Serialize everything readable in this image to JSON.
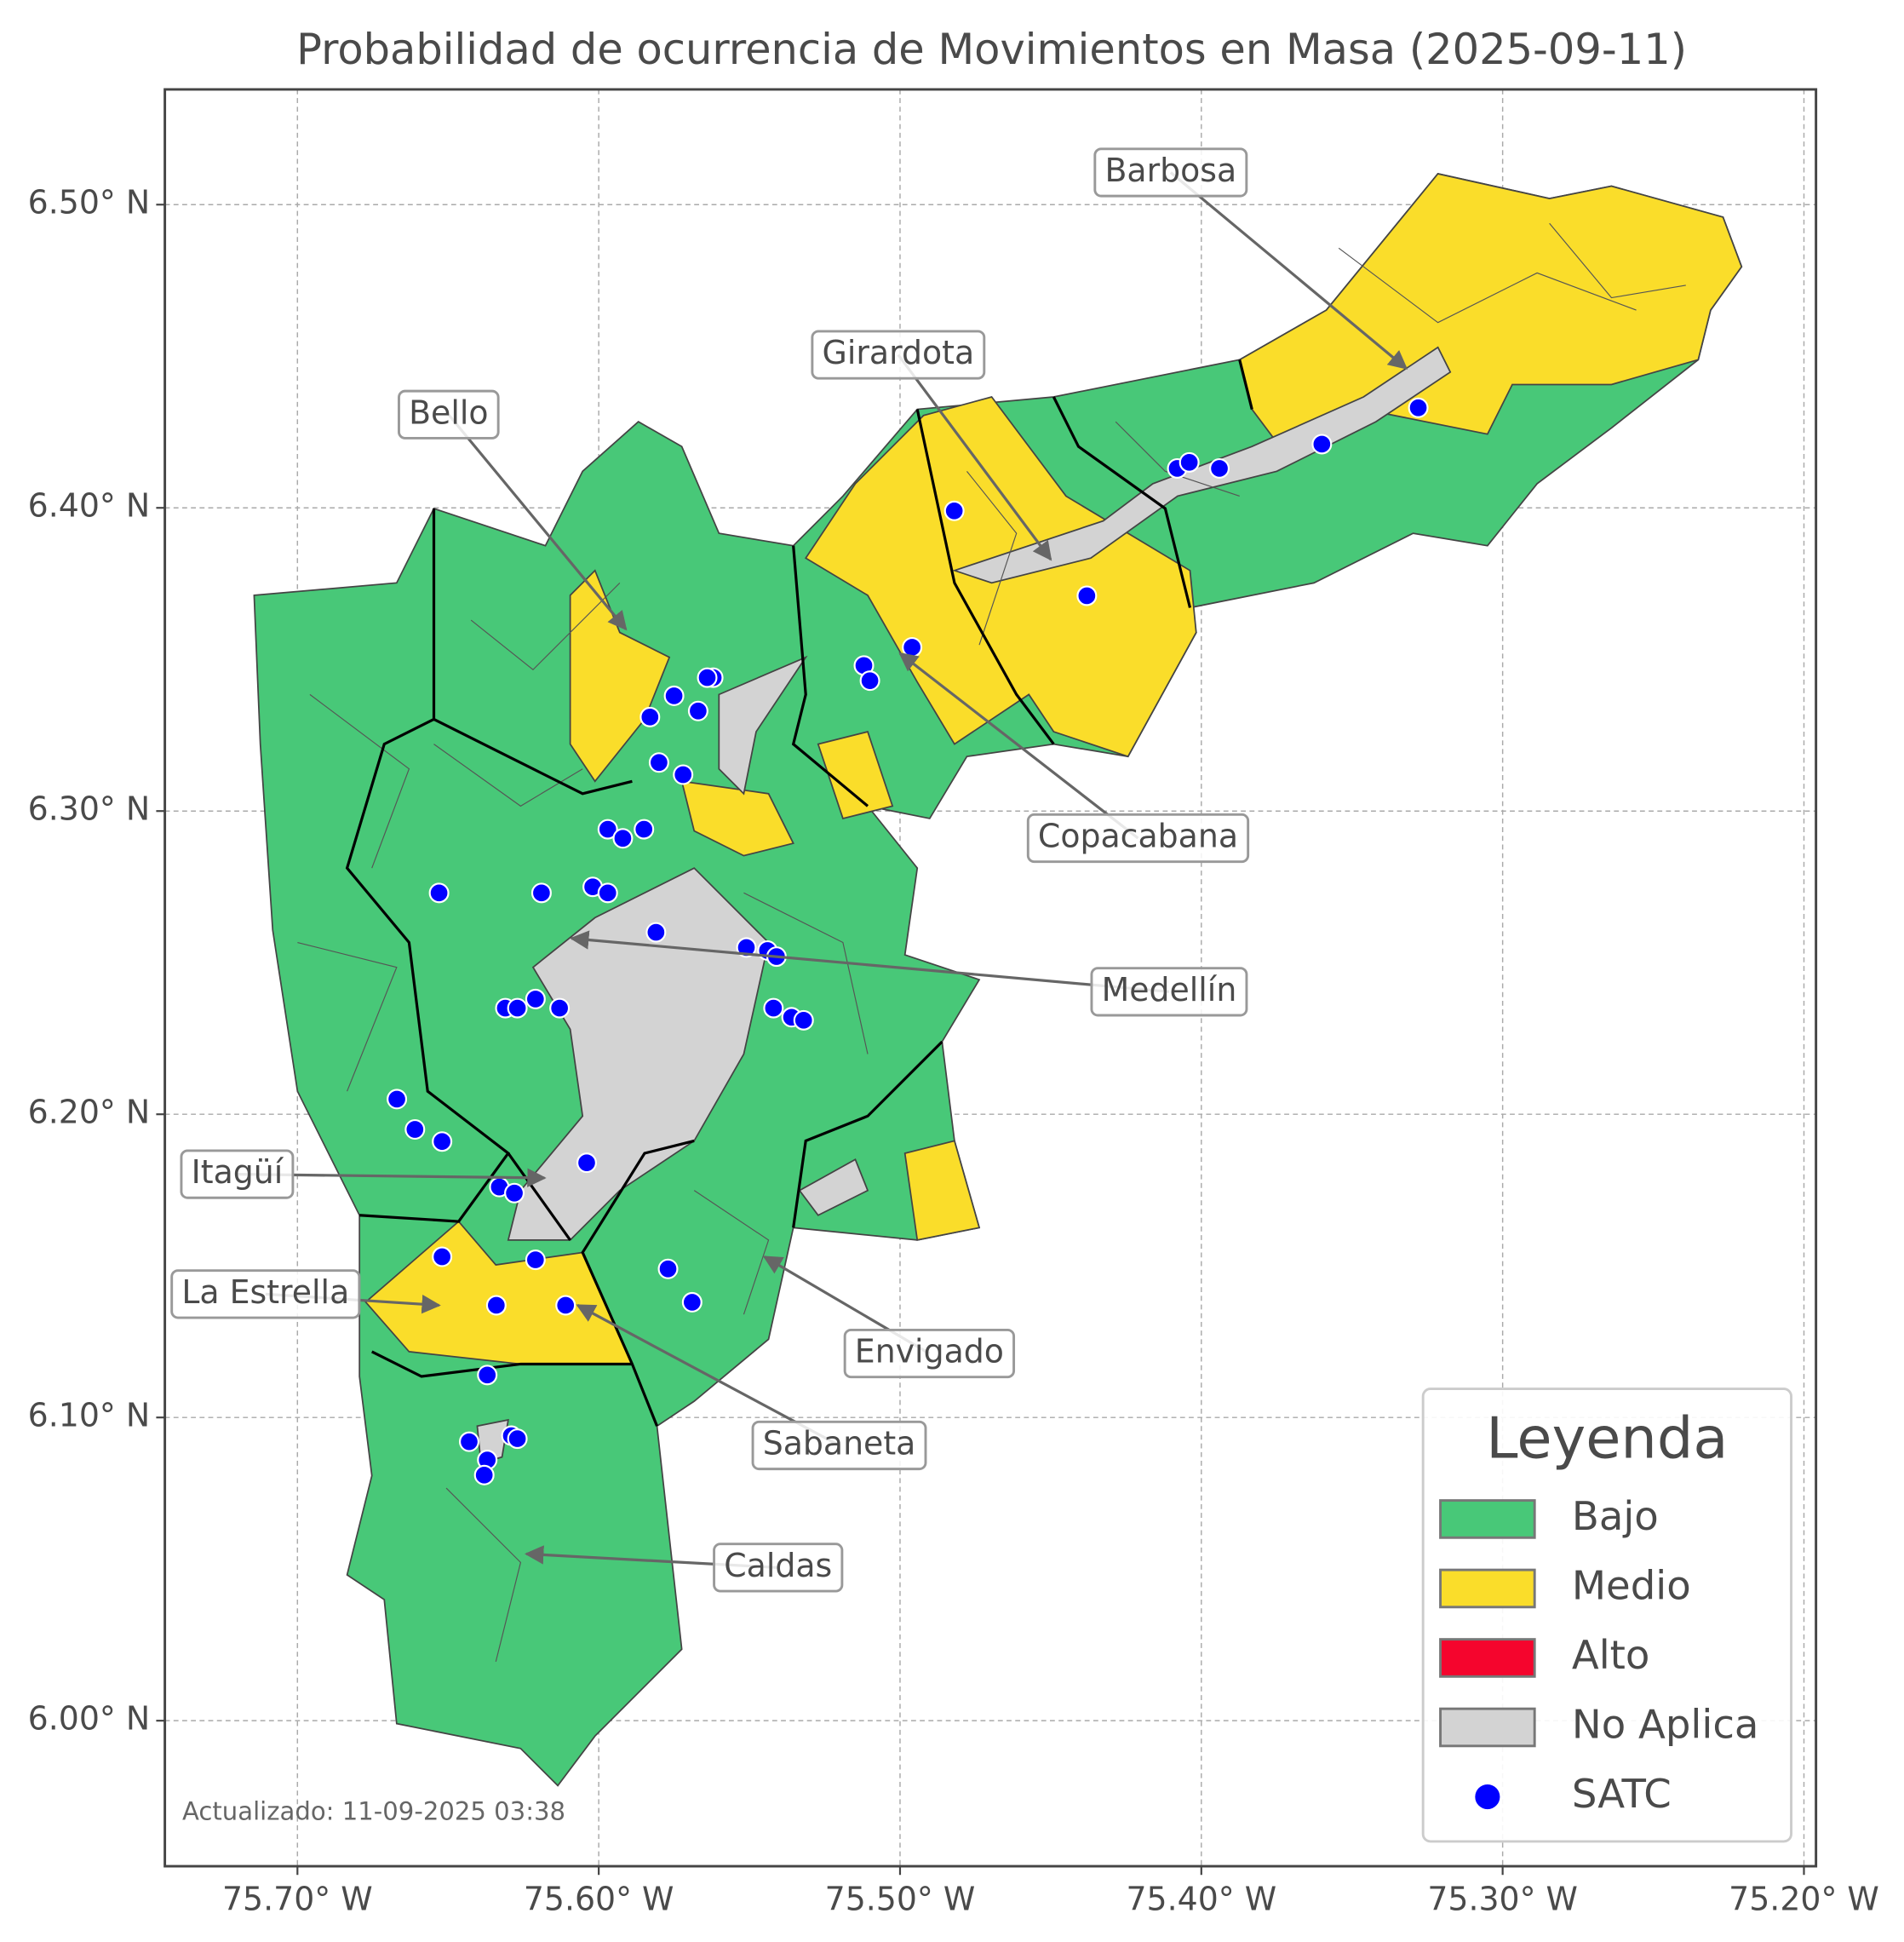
{
  "chart_data": {
    "type": "map",
    "title": "Probabilidad de ocurrencia de Movimientos en Masa (2025-09-11)",
    "xlim": [
      -75.744,
      -75.196
    ],
    "ylim": [
      5.952,
      6.538
    ],
    "xticks": [
      {
        "value": -75.7,
        "label": "75.70° W"
      },
      {
        "value": -75.6,
        "label": "75.60° W"
      },
      {
        "value": -75.5,
        "label": "75.50° W"
      },
      {
        "value": -75.4,
        "label": "75.40° W"
      },
      {
        "value": -75.3,
        "label": "75.30° W"
      },
      {
        "value": -75.2,
        "label": "75.20° W"
      }
    ],
    "yticks": [
      {
        "value": 6.0,
        "label": "6.00° N"
      },
      {
        "value": 6.1,
        "label": "6.10° N"
      },
      {
        "value": 6.2,
        "label": "6.20° N"
      },
      {
        "value": 6.3,
        "label": "6.30° N"
      },
      {
        "value": 6.4,
        "label": "6.40° N"
      },
      {
        "value": 6.5,
        "label": "6.50° N"
      }
    ],
    "grid": true,
    "legend_title": "Leyenda",
    "legend_loc": "lower right",
    "classes": [
      {
        "name": "Bajo",
        "color": "#48c878"
      },
      {
        "name": "Medio",
        "color": "#fadd2a"
      },
      {
        "name": "Alto",
        "color": "#f5052d"
      },
      {
        "name": "No Aplica",
        "color": "#d3d3d3"
      }
    ],
    "series": [
      {
        "name": "SATC",
        "color": "#0000ff",
        "x": [
          -75.328,
          -75.36,
          -75.408,
          -75.404,
          -75.394,
          -75.482,
          -75.438,
          -75.496,
          -75.512,
          -75.51,
          -75.562,
          -75.564,
          -75.575,
          -75.567,
          -75.583,
          -75.58,
          -75.572,
          -75.597,
          -75.592,
          -75.585,
          -75.653,
          -75.619,
          -75.602,
          -75.597,
          -75.581,
          -75.551,
          -75.544,
          -75.541,
          -75.542,
          -75.536,
          -75.532,
          -75.631,
          -75.627,
          -75.621,
          -75.613,
          -75.667,
          -75.661,
          -75.652,
          -75.604,
          -75.633,
          -75.628,
          -75.652,
          -75.621,
          -75.577,
          -75.569,
          -75.634,
          -75.611,
          -75.637,
          -75.643,
          -75.629,
          -75.627,
          -75.637,
          -75.638
        ],
        "y": [
          6.433,
          6.421,
          6.413,
          6.415,
          6.413,
          6.399,
          6.371,
          6.354,
          6.348,
          6.343,
          6.344,
          6.344,
          6.338,
          6.333,
          6.331,
          6.316,
          6.312,
          6.294,
          6.291,
          6.294,
          6.273,
          6.273,
          6.275,
          6.273,
          6.26,
          6.255,
          6.254,
          6.252,
          6.235,
          6.232,
          6.231,
          6.235,
          6.235,
          6.238,
          6.235,
          6.205,
          6.195,
          6.191,
          6.184,
          6.176,
          6.174,
          6.153,
          6.152,
          6.149,
          6.138,
          6.137,
          6.137,
          6.114,
          6.092,
          6.094,
          6.093,
          6.086,
          6.081
        ]
      }
    ],
    "annotations": [
      {
        "text": "Barbosa",
        "x": -75.332,
        "y": 6.446
      },
      {
        "text": "Girardota",
        "x": -75.45,
        "y": 6.383
      },
      {
        "text": "Bello",
        "x": -75.591,
        "y": 6.36
      },
      {
        "text": "Copacabana",
        "x": -75.5,
        "y": 6.352
      },
      {
        "text": "Medellín",
        "x": -75.609,
        "y": 6.258
      },
      {
        "text": "Itagüí",
        "x": -75.618,
        "y": 6.179
      },
      {
        "text": "La Estrella",
        "x": -75.653,
        "y": 6.137
      },
      {
        "text": "Envigado",
        "x": -75.545,
        "y": 6.153
      },
      {
        "text": "Sabaneta",
        "x": -75.607,
        "y": 6.137
      },
      {
        "text": "Caldas",
        "x": -75.624,
        "y": 6.055
      }
    ],
    "note": "Actualizado: 11-09-2025 03:38"
  }
}
